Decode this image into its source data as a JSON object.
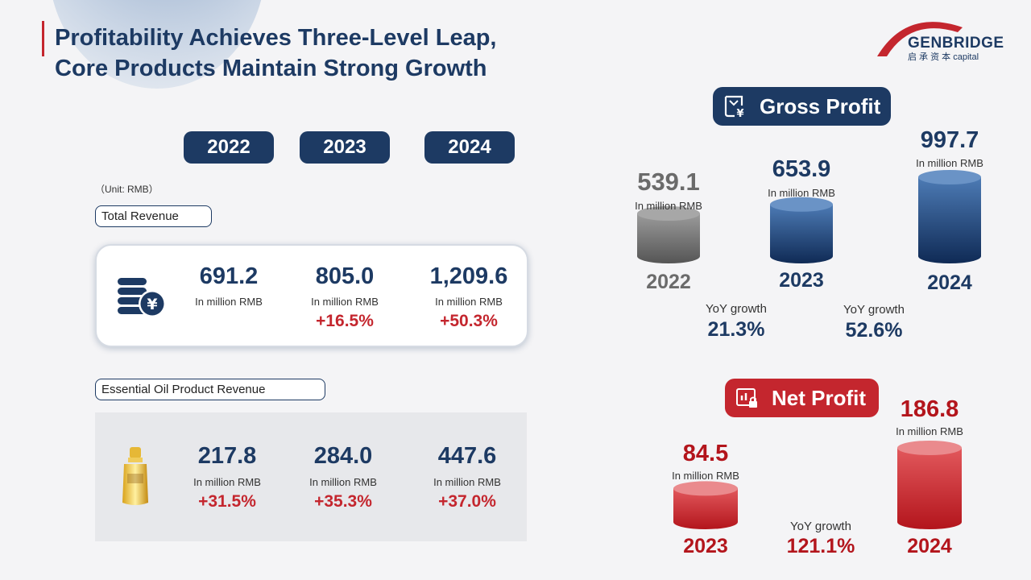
{
  "title": {
    "line1": "Profitability Achieves Three-Level Leap,",
    "line2": "Core Products Maintain Strong Growth"
  },
  "logo": {
    "main": "GENBRIDGE",
    "sub": "启  承  资  本 capital"
  },
  "colors": {
    "navy": "#1d3a63",
    "red": "#c4262e",
    "gray": "#6b6b6b",
    "background": "#f4f4f6"
  },
  "years": [
    "2022",
    "2023",
    "2024"
  ],
  "unit_note": "（Unit: RMB）",
  "total_revenue": {
    "label": "Total Revenue",
    "icon": "coins-yuan-icon",
    "values": [
      "691.2",
      "805.0",
      "1,209.6"
    ],
    "units": [
      "In million RMB",
      "In million RMB",
      "In million RMB"
    ],
    "growth": [
      "",
      "+16.5%",
      "+50.3%"
    ]
  },
  "essential_oil": {
    "label": "Essential Oil Product Revenue",
    "icon": "essential-oil-bottle-icon",
    "values": [
      "217.8",
      "284.0",
      "447.6"
    ],
    "units": [
      "In million RMB",
      "In million RMB",
      "In million RMB"
    ],
    "growth": [
      "+31.5%",
      "+35.3%",
      "+37.0%"
    ]
  },
  "gross_profit": {
    "badge": "Gross Profit",
    "icon": "document-yuan-icon",
    "value_labels": [
      "539.1",
      "653.9",
      "997.7"
    ],
    "unit_label": "In million RMB",
    "yoy_label": "YoY growth",
    "yoy_values": [
      "21.3%",
      "52.6%"
    ]
  },
  "net_profit": {
    "badge": "Net Profit",
    "icon": "chart-lock-icon",
    "value_labels": [
      "84.5",
      "186.8"
    ],
    "unit_label": "In million RMB",
    "yoy_label": "YoY growth",
    "yoy_value": "121.1%"
  },
  "chart_data": [
    {
      "type": "bar",
      "title": "Gross Profit",
      "categories": [
        "2022",
        "2023",
        "2024"
      ],
      "values": [
        539.1,
        653.9,
        997.7
      ],
      "ylabel": "In million RMB"
    },
    {
      "type": "bar",
      "title": "Net Profit",
      "categories": [
        "2023",
        "2024"
      ],
      "values": [
        84.5,
        186.8
      ],
      "ylabel": "In million RMB"
    }
  ]
}
